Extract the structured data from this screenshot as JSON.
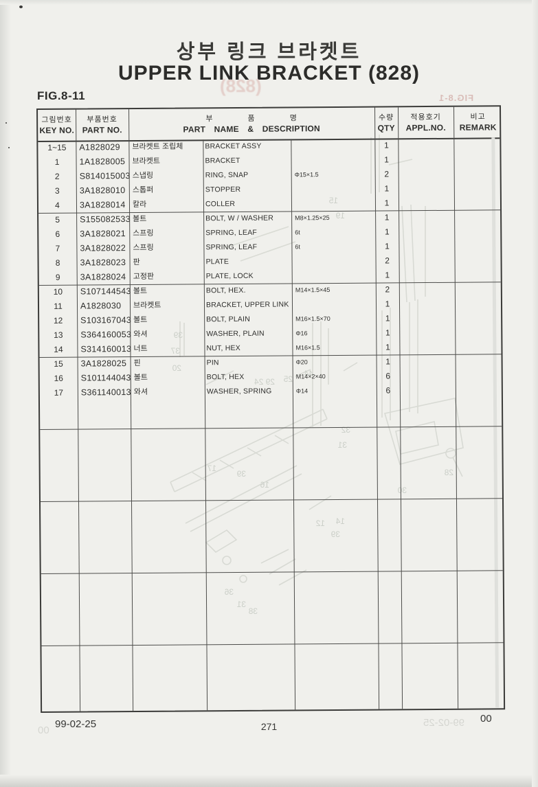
{
  "page": {
    "title_ko": "상부 링크 브라켓트",
    "title_en": "UPPER LINK BRACKET (828)",
    "figure_label": "FIG.8-11",
    "footer": {
      "date": "99-02-25",
      "page_number": "271",
      "revision": "00"
    },
    "bleedthrough": {
      "figure_mirror": "FIG.8-1",
      "title_mirror": "(828)",
      "date_mirror": "99-02-25",
      "revision_mirror": "00"
    }
  },
  "table": {
    "headers": {
      "key_ko": "그림번호",
      "key_en": "KEY NO.",
      "part_ko": "부품번호",
      "part_en": "PART NO.",
      "name_ko": "부 품 명",
      "name_en": "PART NAME & DESCRIPTION",
      "qty_ko": "수량",
      "qty_en": "QTY",
      "appl_ko": "적용호기",
      "appl_en": "APPL.NO.",
      "remark_ko": "비고",
      "remark_en": "REMARK"
    },
    "rows": [
      {
        "key": "1~15",
        "part_no": "A1828029",
        "name_ko": "브라켓트 조립체",
        "name_en": "BRACKET ASSY",
        "spec": "",
        "qty": "1",
        "appl": "",
        "remark": ""
      },
      {
        "key": "1",
        "part_no": "1A1828005",
        "name_ko": "브라켓트",
        "name_en": "BRACKET",
        "spec": "",
        "qty": "1",
        "appl": "",
        "remark": ""
      },
      {
        "key": "2",
        "part_no": "S814015003",
        "name_ko": "스냅링",
        "name_en": "RING, SNAP",
        "spec": "Φ15×1.5",
        "qty": "2",
        "appl": "",
        "remark": ""
      },
      {
        "key": "3",
        "part_no": "3A1828010",
        "name_ko": "스톱퍼",
        "name_en": "STOPPER",
        "spec": "",
        "qty": "1",
        "appl": "",
        "remark": ""
      },
      {
        "key": "4",
        "part_no": "3A1828014",
        "name_ko": "칼라",
        "name_en": "COLLER",
        "spec": "",
        "qty": "1",
        "appl": "",
        "remark": ""
      },
      {
        "key": "5",
        "part_no": "S155082533",
        "name_ko": "볼트",
        "name_en": "BOLT, W / WASHER",
        "spec": "M8×1.25×25",
        "qty": "1",
        "appl": "",
        "remark": ""
      },
      {
        "key": "6",
        "part_no": "3A1828021",
        "name_ko": "스프링",
        "name_en": "SPRING, LEAF",
        "spec": "6t",
        "qty": "1",
        "appl": "",
        "remark": ""
      },
      {
        "key": "7",
        "part_no": "3A1828022",
        "name_ko": "스프링",
        "name_en": "SPRING, LEAF",
        "spec": "6t",
        "qty": "1",
        "appl": "",
        "remark": ""
      },
      {
        "key": "8",
        "part_no": "3A1828023",
        "name_ko": "판",
        "name_en": "PLATE",
        "spec": "",
        "qty": "2",
        "appl": "",
        "remark": ""
      },
      {
        "key": "9",
        "part_no": "3A1828024",
        "name_ko": "고정판",
        "name_en": "PLATE, LOCK",
        "spec": "",
        "qty": "1",
        "appl": "",
        "remark": ""
      },
      {
        "key": "10",
        "part_no": "S107144543",
        "name_ko": "볼트",
        "name_en": "BOLT, HEX.",
        "spec": "M14×1.5×45",
        "qty": "2",
        "appl": "",
        "remark": ""
      },
      {
        "key": "11",
        "part_no": "A1828030",
        "name_ko": "브라켓트",
        "name_en": "BRACKET, UPPER LINK",
        "spec": "",
        "qty": "1",
        "appl": "",
        "remark": ""
      },
      {
        "key": "12",
        "part_no": "S103167043",
        "name_ko": "볼트",
        "name_en": "BOLT, PLAIN",
        "spec": "M16×1.5×70",
        "qty": "1",
        "appl": "",
        "remark": ""
      },
      {
        "key": "13",
        "part_no": "S364160053",
        "name_ko": "와셔",
        "name_en": "WASHER, PLAIN",
        "spec": "Φ16",
        "qty": "1",
        "appl": "",
        "remark": ""
      },
      {
        "key": "14",
        "part_no": "S314160013",
        "name_ko": "너트",
        "name_en": "NUT, HEX",
        "spec": "M16×1.5",
        "qty": "1",
        "appl": "",
        "remark": ""
      },
      {
        "key": "15",
        "part_no": "3A1828025",
        "name_ko": "핀",
        "name_en": "PIN",
        "spec": "Φ20",
        "qty": "1",
        "appl": "",
        "remark": ""
      },
      {
        "key": "16",
        "part_no": "S101144043",
        "name_ko": "볼트",
        "name_en": "BOLT, HEX",
        "spec": "M14×2×40",
        "qty": "6",
        "appl": "",
        "remark": ""
      },
      {
        "key": "17",
        "part_no": "S361140013",
        "name_ko": "와셔",
        "name_en": "WASHER, SPRING",
        "spec": "Φ14",
        "qty": "6",
        "appl": "",
        "remark": ""
      }
    ]
  }
}
